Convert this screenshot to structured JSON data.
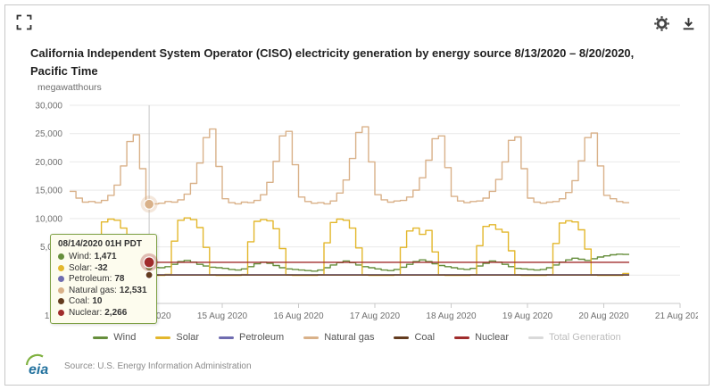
{
  "header": {
    "title": "California Independent System Operator (CISO) electricity generation by energy source 8/13/2020 – 8/20/2020, Pacific Time"
  },
  "toolbar": {
    "icons": {
      "fullscreen": "fullscreen-corners",
      "settings": "gear",
      "download": "download-arrow"
    }
  },
  "tooltip": {
    "timestamp": "08/14/2020 01H PDT",
    "rows": [
      {
        "label": "Wind",
        "value": "1,471",
        "color": "#668e3c"
      },
      {
        "label": "Solar",
        "value": "-32",
        "color": "#e3b72c"
      },
      {
        "label": "Petroleum",
        "value": "78",
        "color": "#6f6cb0"
      },
      {
        "label": "Natural gas",
        "value": "12,531",
        "color": "#d9b189"
      },
      {
        "label": "Coal",
        "value": "10",
        "color": "#633b1f"
      },
      {
        "label": "Nuclear",
        "value": "2,266",
        "color": "#a02c2c"
      }
    ]
  },
  "crosshair": {
    "hour": 25,
    "points": [
      {
        "series": "Natural gas",
        "value": 12531,
        "r": 5.5,
        "halo": true
      },
      {
        "series": "Wind",
        "value": 1471,
        "r": 4.5
      },
      {
        "series": "Solar",
        "value": -32,
        "r": 4
      },
      {
        "series": "Petroleum",
        "value": 78,
        "r": 4
      },
      {
        "series": "Coal",
        "value": 10,
        "r": 4
      },
      {
        "series": "Nuclear",
        "value": 2266,
        "r": 6,
        "halo": true
      }
    ]
  },
  "legend": {
    "items": [
      {
        "label": "Wind",
        "color": "#668e3c",
        "disabled": false
      },
      {
        "label": "Solar",
        "color": "#e3b72c",
        "disabled": false
      },
      {
        "label": "Petroleum",
        "color": "#6f6cb0",
        "disabled": false
      },
      {
        "label": "Natural gas",
        "color": "#d9b189",
        "disabled": false
      },
      {
        "label": "Coal",
        "color": "#633b1f",
        "disabled": false
      },
      {
        "label": "Nuclear",
        "color": "#a02c2c",
        "disabled": false
      },
      {
        "label": "Total Generation",
        "color": "#cccccc",
        "disabled": true
      }
    ]
  },
  "footer": {
    "logo_text": "eia",
    "source": "Source: U.S. Energy Information Administration"
  },
  "chart_data": {
    "type": "line",
    "step": true,
    "title": "California Independent System Operator (CISO) electricity generation by energy source 8/13/2020 – 8/20/2020, Pacific Time",
    "xlabel": "",
    "ylabel": "megawatthours",
    "ylim": [
      -5000,
      30000
    ],
    "x_hours_span": 192,
    "step_hours": 2,
    "points": 88,
    "x_ticks": [
      "13 Aug 2020",
      "14 Aug 2020",
      "15 Aug 2020",
      "16 Aug 2020",
      "17 Aug 2020",
      "18 Aug 2020",
      "19 Aug 2020",
      "20 Aug 2020",
      "21 Aug 2020"
    ],
    "y_ticks": [
      {
        "value": 0,
        "label": "0"
      },
      {
        "value": 5000,
        "label": "5,000"
      },
      {
        "value": 10000,
        "label": "10,000"
      },
      {
        "value": 15000,
        "label": "15,000"
      },
      {
        "value": 20000,
        "label": "20,000"
      },
      {
        "value": 25000,
        "label": "25,000"
      },
      {
        "value": 30000,
        "label": "30,000"
      }
    ],
    "series": [
      {
        "name": "Wind",
        "color": "#668e3c",
        "values": [
          1900,
          1700,
          1500,
          1300,
          1100,
          900,
          800,
          1000,
          1400,
          1800,
          2100,
          1800,
          1471,
          1350,
          1300,
          1500,
          1900,
          2400,
          2600,
          2300,
          1900,
          1600,
          1400,
          1300,
          1200,
          1000,
          900,
          1100,
          1500,
          2000,
          2300,
          2100,
          1700,
          1300,
          1100,
          1000,
          900,
          800,
          700,
          900,
          1300,
          1800,
          2200,
          2500,
          2200,
          1800,
          1500,
          1300,
          1100,
          900,
          800,
          1000,
          1400,
          1900,
          2400,
          2700,
          2400,
          2000,
          1700,
          1500,
          1300,
          1100,
          1000,
          1200,
          1600,
          2100,
          2500,
          2300,
          1900,
          1500,
          1200,
          1100,
          1000,
          900,
          1000,
          1300,
          1800,
          2300,
          2700,
          3000,
          2800,
          2600,
          2900,
          3200,
          3400,
          3600,
          3700,
          3650
        ]
      },
      {
        "name": "Solar",
        "color": "#e3b72c",
        "values": [
          -32,
          -32,
          -32,
          100,
          5800,
          9400,
          9900,
          9700,
          8300,
          4800,
          60,
          -32,
          -32,
          -32,
          -32,
          120,
          6000,
          9700,
          10100,
          9800,
          8400,
          4900,
          50,
          -32,
          -32,
          -32,
          -32,
          110,
          5900,
          9500,
          9800,
          9600,
          8200,
          4700,
          40,
          -32,
          -32,
          -32,
          -32,
          100,
          5700,
          9300,
          9900,
          9700,
          8300,
          4800,
          50,
          -32,
          -32,
          -32,
          -32,
          80,
          4900,
          7800,
          8300,
          7200,
          7900,
          4100,
          40,
          -32,
          -32,
          -32,
          -32,
          90,
          5200,
          8600,
          8900,
          8100,
          7600,
          4300,
          40,
          -32,
          -32,
          -32,
          -32,
          100,
          5600,
          9200,
          9600,
          9400,
          8000,
          4600,
          50,
          -32,
          -32,
          -32,
          -32,
          300
        ]
      },
      {
        "name": "Petroleum",
        "color": "#6f6cb0",
        "constant_value": 78
      },
      {
        "name": "Natural gas",
        "color": "#d9b189",
        "values": [
          14800,
          13600,
          12900,
          13000,
          12800,
          13200,
          14100,
          15900,
          19300,
          23600,
          24800,
          18800,
          12531,
          12600,
          12700,
          13000,
          12900,
          13300,
          14300,
          16200,
          19800,
          24300,
          25800,
          19200,
          13500,
          12800,
          12600,
          12900,
          12800,
          13200,
          14200,
          16400,
          20100,
          24600,
          25400,
          19500,
          13800,
          13000,
          12700,
          12800,
          12600,
          13100,
          14500,
          16800,
          20600,
          25200,
          26200,
          20000,
          14200,
          13300,
          12900,
          13100,
          13200,
          13800,
          15000,
          17200,
          20300,
          24100,
          24600,
          19000,
          13900,
          13100,
          12800,
          13000,
          13100,
          13600,
          14800,
          16900,
          20000,
          23800,
          24400,
          18800,
          13600,
          12900,
          12700,
          12900,
          13000,
          13500,
          14600,
          16700,
          20200,
          24300,
          25100,
          19300,
          14100,
          13500,
          13000,
          12800
        ]
      },
      {
        "name": "Coal",
        "color": "#633b1f",
        "constant_value": 10
      },
      {
        "name": "Nuclear",
        "color": "#a02c2c",
        "constant_value": 2266
      },
      {
        "name": "Total Generation",
        "color": "#cccccc",
        "disabled": true
      }
    ],
    "legend_position": "bottom",
    "grid": true
  }
}
